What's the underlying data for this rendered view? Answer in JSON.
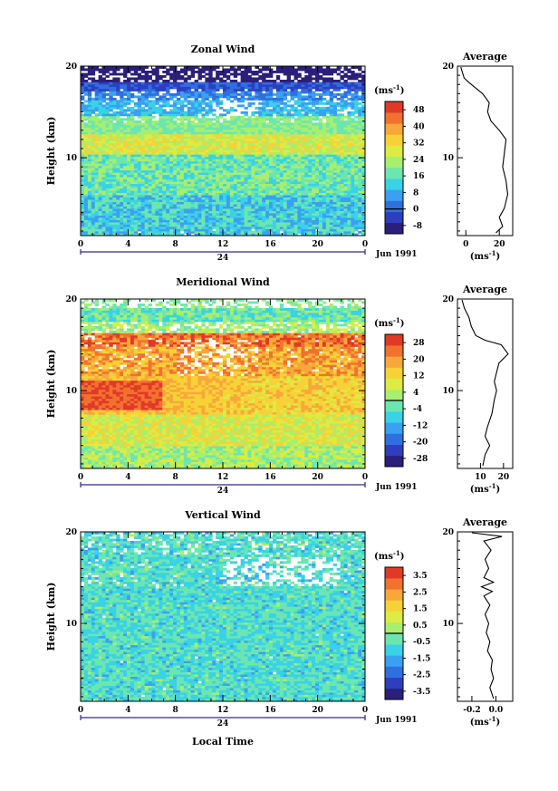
{
  "xlabel": "Local Time",
  "date_label": "Jun 1991",
  "day_label": "24",
  "ylabel": "Height (km)",
  "unit_label": "(ms",
  "unit_exp": "-1",
  "unit_close": ")",
  "avg_title": "Average",
  "panels": [
    {
      "title": "Zonal Wind"
    },
    {
      "title": "Meridional Wind"
    },
    {
      "title": "Vertical Wind"
    }
  ],
  "chart_data": [
    {
      "type": "heatmap",
      "title": "Zonal Wind",
      "xlabel": "Local Time",
      "ylabel": "Height (km)",
      "x_ticks": [
        "0",
        "4",
        "8",
        "12",
        "16",
        "20",
        "0"
      ],
      "y_ticks": [
        "10",
        "20"
      ],
      "xlim": [
        0,
        24
      ],
      "ylim": [
        1.5,
        20
      ],
      "colorbar": {
        "unit": "(ms-1)",
        "levels": [
          -8,
          0,
          8,
          16,
          24,
          32,
          40,
          48
        ],
        "min": -12,
        "max": 52
      },
      "profile": {
        "title": "Average",
        "x_ticks": [
          "0",
          "20"
        ],
        "xlim": [
          -5,
          28
        ],
        "points": [
          [
            18,
            1.8
          ],
          [
            22,
            2.5
          ],
          [
            20,
            3.5
          ],
          [
            23,
            4.5
          ],
          [
            25,
            6
          ],
          [
            24,
            7.5
          ],
          [
            22,
            9
          ],
          [
            23,
            10.5
          ],
          [
            24,
            12
          ],
          [
            20,
            13
          ],
          [
            15,
            14
          ],
          [
            13,
            15
          ],
          [
            14,
            16
          ],
          [
            10,
            17
          ],
          [
            6,
            17.6
          ],
          [
            2,
            18.2
          ],
          [
            -1,
            18.7
          ],
          [
            -2,
            19.3
          ],
          [
            -3,
            19.9
          ]
        ]
      }
    },
    {
      "type": "heatmap",
      "title": "Meridional Wind",
      "xlabel": "Local Time",
      "ylabel": "Height (km)",
      "x_ticks": [
        "0",
        "4",
        "8",
        "12",
        "16",
        "20",
        "0"
      ],
      "y_ticks": [
        "10",
        "20"
      ],
      "xlim": [
        0,
        24
      ],
      "ylim": [
        1.5,
        20
      ],
      "colorbar": {
        "unit": "(ms-1)",
        "levels": [
          -28,
          -20,
          -12,
          -4,
          4,
          12,
          20,
          28
        ],
        "min": -32,
        "max": 32
      },
      "profile": {
        "title": "Average",
        "x_ticks": [
          "10",
          "20"
        ],
        "xlim": [
          0,
          24
        ],
        "points": [
          [
            11,
            1.8
          ],
          [
            12,
            3
          ],
          [
            14,
            4
          ],
          [
            12,
            5
          ],
          [
            13,
            6
          ],
          [
            15,
            7.5
          ],
          [
            16,
            9
          ],
          [
            17,
            10
          ],
          [
            16,
            11
          ],
          [
            17,
            12
          ],
          [
            18,
            13
          ],
          [
            22,
            14
          ],
          [
            19,
            15
          ],
          [
            12,
            15.5
          ],
          [
            8,
            16
          ],
          [
            6,
            17
          ],
          [
            5,
            18
          ],
          [
            3,
            19
          ],
          [
            2,
            19.9
          ]
        ]
      }
    },
    {
      "type": "heatmap",
      "title": "Vertical Wind",
      "xlabel": "Local Time",
      "ylabel": "Height (km)",
      "x_ticks": [
        "0",
        "4",
        "8",
        "12",
        "16",
        "20",
        "0"
      ],
      "y_ticks": [
        "10",
        "20"
      ],
      "xlim": [
        0,
        24
      ],
      "ylim": [
        1.5,
        20
      ],
      "colorbar": {
        "unit": "(ms-1)",
        "levels": [
          -3.5,
          -2.5,
          -1.5,
          -0.5,
          0.5,
          1.5,
          2.5,
          3.5
        ],
        "min": -4,
        "max": 4
      },
      "profile": {
        "title": "Average",
        "x_ticks": [
          "-0.2",
          "0.0"
        ],
        "xlim": [
          -0.32,
          0.14
        ],
        "points": [
          [
            -0.02,
            1.8
          ],
          [
            -0.05,
            3
          ],
          [
            -0.02,
            4
          ],
          [
            -0.04,
            5
          ],
          [
            -0.03,
            6
          ],
          [
            -0.07,
            7
          ],
          [
            -0.05,
            8
          ],
          [
            -0.08,
            9
          ],
          [
            -0.06,
            10
          ],
          [
            -0.09,
            11
          ],
          [
            -0.05,
            12
          ],
          [
            -0.1,
            13
          ],
          [
            -0.03,
            13.5
          ],
          [
            -0.12,
            14
          ],
          [
            -0.02,
            14.5
          ],
          [
            -0.1,
            15
          ],
          [
            -0.06,
            16
          ],
          [
            -0.09,
            17
          ],
          [
            -0.04,
            18
          ],
          [
            -0.1,
            19
          ],
          [
            0.05,
            19.5
          ],
          [
            -0.2,
            19.9
          ]
        ]
      }
    }
  ],
  "palette": [
    "#2b1f7a",
    "#2d3fbf",
    "#2f6fe0",
    "#3aa0f2",
    "#39d2e6",
    "#6ce6b0",
    "#a8ee6f",
    "#dcec42",
    "#f7d237",
    "#f8a83a",
    "#f2712f",
    "#e03a27"
  ]
}
